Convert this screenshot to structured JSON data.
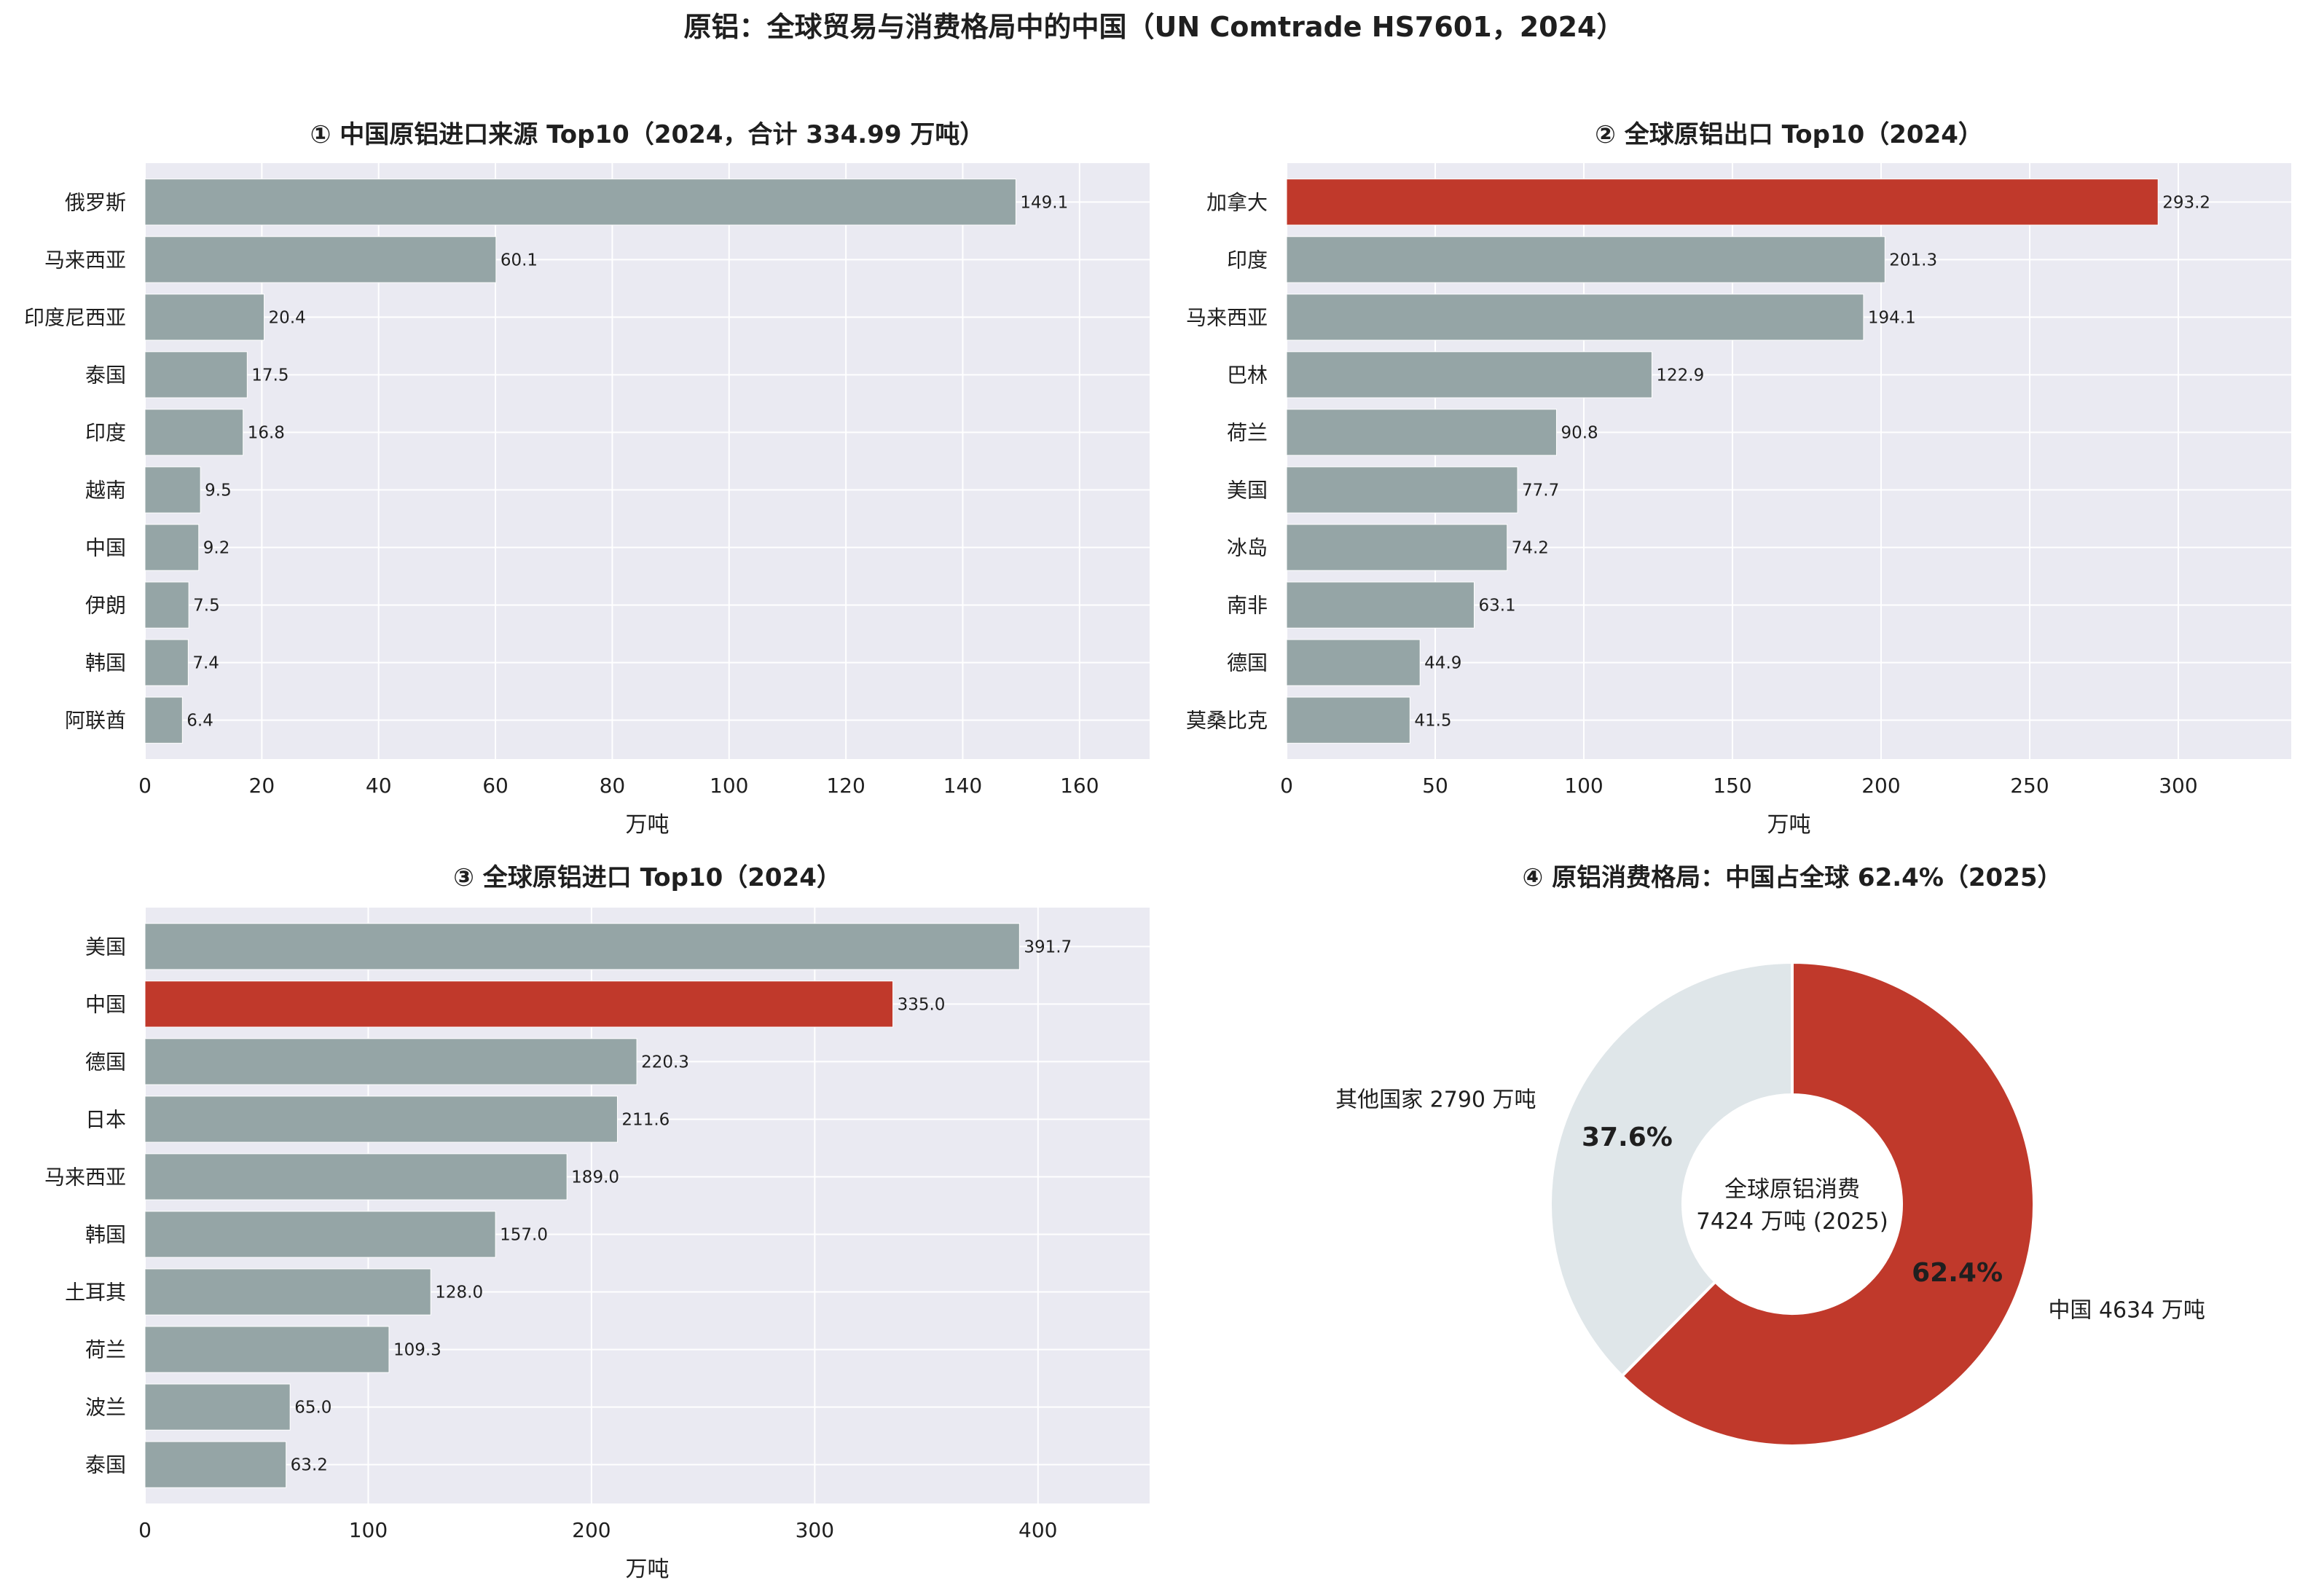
{
  "title": "原铝：全球贸易与消费格局中的中国（UN Comtrade HS7601，2024）",
  "colors": {
    "bar": "#95a5a6",
    "highlight": "#c0392b",
    "pie_other": "#dfe6e9",
    "panel_bg": "#eaeaf2",
    "grid": "#ffffff"
  },
  "chart_data": [
    {
      "type": "bar",
      "orientation": "horizontal",
      "title": "① 中国原铝进口来源 Top10（2024，合计 334.99 万吨）",
      "xlabel": "万吨",
      "xlim": [
        0,
        172
      ],
      "xticks": [
        0,
        20,
        40,
        60,
        80,
        100,
        120,
        140,
        160
      ],
      "categories": [
        "俄罗斯",
        "马来西亚",
        "印度尼西亚",
        "泰国",
        "印度",
        "越南",
        "中国",
        "伊朗",
        "韩国",
        "阿联酋"
      ],
      "values": [
        149.1,
        60.1,
        20.4,
        17.5,
        16.8,
        9.5,
        9.2,
        7.5,
        7.4,
        6.4
      ],
      "value_labels": [
        "149.1",
        "60.1",
        "20.4",
        "17.5",
        "16.8",
        "9.5",
        "9.2",
        "7.5",
        "7.4",
        "6.4"
      ],
      "highlight": [],
      "grid": true
    },
    {
      "type": "bar",
      "orientation": "horizontal",
      "title": "② 全球原铝出口 Top10（2024）",
      "xlabel": "万吨",
      "xlim": [
        0,
        338
      ],
      "xticks": [
        0,
        50,
        100,
        150,
        200,
        250,
        300
      ],
      "categories": [
        "加拿大",
        "印度",
        "马来西亚",
        "巴林",
        "荷兰",
        "美国",
        "冰岛",
        "南非",
        "德国",
        "莫桑比克"
      ],
      "values": [
        293.2,
        201.3,
        194.1,
        122.9,
        90.8,
        77.7,
        74.2,
        63.1,
        44.9,
        41.5
      ],
      "value_labels": [
        "293.2",
        "201.3",
        "194.1",
        "122.9",
        "90.8",
        "77.7",
        "74.2",
        "63.1",
        "44.9",
        "41.5"
      ],
      "highlight": [
        "加拿大"
      ],
      "grid": true
    },
    {
      "type": "bar",
      "orientation": "horizontal",
      "title": "③ 全球原铝进口 Top10（2024）",
      "xlabel": "万吨",
      "xlim": [
        0,
        450
      ],
      "xticks": [
        0,
        100,
        200,
        300,
        400
      ],
      "categories": [
        "美国",
        "中国",
        "德国",
        "日本",
        "马来西亚",
        "韩国",
        "土耳其",
        "荷兰",
        "波兰",
        "泰国"
      ],
      "values": [
        391.7,
        335.0,
        220.3,
        211.6,
        189.0,
        157.0,
        128.0,
        109.3,
        65.0,
        63.2
      ],
      "value_labels": [
        "391.7",
        "335.0",
        "220.3",
        "211.6",
        "189.0",
        "157.0",
        "128.0",
        "109.3",
        "65.0",
        "63.2"
      ],
      "highlight": [
        "中国"
      ],
      "grid": true
    },
    {
      "type": "pie",
      "donut": true,
      "title": "④ 原铝消费格局：中国占全球 62.4%（2025）",
      "center_text": [
        "全球原铝消费",
        "7424 万吨 (2025)"
      ],
      "slices": [
        {
          "label": "中国 4634 万吨",
          "value": 4634,
          "pct_label": "62.4%",
          "color": "#c0392b"
        },
        {
          "label": "其他国家 2790 万吨",
          "value": 2790,
          "pct_label": "37.6%",
          "color": "#dfe6e9"
        }
      ]
    }
  ]
}
